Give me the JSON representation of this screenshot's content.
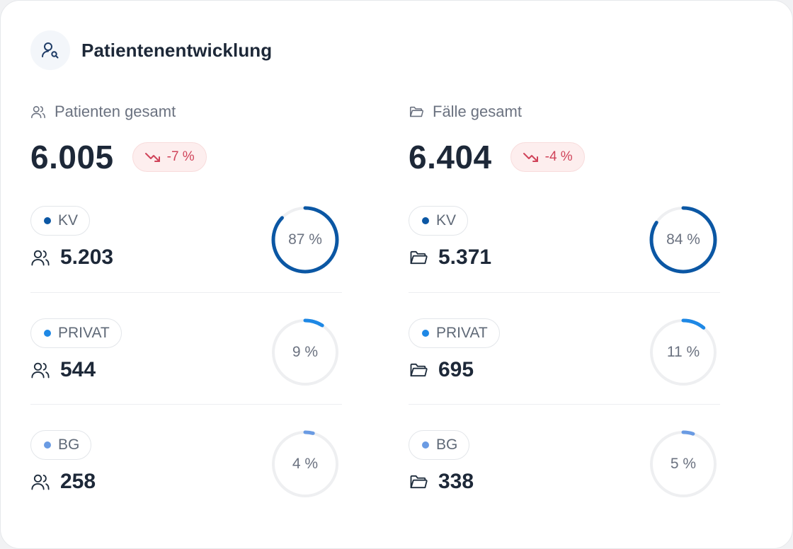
{
  "title": "Patientenentwicklung",
  "icons": {
    "header": "patient-search-icon",
    "patients": "users-icon",
    "cases": "folder-icon",
    "trend": "trending-down-icon"
  },
  "colors": {
    "kv": "#0b57a4",
    "privat": "#1e88e5",
    "bg": "#6a9be3",
    "ring_track": "#eeeff1",
    "trend_negative": "#d0445a"
  },
  "patients": {
    "label": "Patienten gesamt",
    "total": "6.005",
    "trend": "-7 %",
    "segments": [
      {
        "tag": "KV",
        "count": "5.203",
        "percent_label": "87 %",
        "percent": 87
      },
      {
        "tag": "PRIVAT",
        "count": "544",
        "percent_label": "9 %",
        "percent": 9
      },
      {
        "tag": "BG",
        "count": "258",
        "percent_label": "4 %",
        "percent": 4
      }
    ]
  },
  "cases": {
    "label": "Fälle gesamt",
    "total": "6.404",
    "trend": "-4 %",
    "segments": [
      {
        "tag": "KV",
        "count": "5.371",
        "percent_label": "84 %",
        "percent": 84
      },
      {
        "tag": "PRIVAT",
        "count": "695",
        "percent_label": "11 %",
        "percent": 11
      },
      {
        "tag": "BG",
        "count": "338",
        "percent_label": "5 %",
        "percent": 5
      }
    ]
  }
}
